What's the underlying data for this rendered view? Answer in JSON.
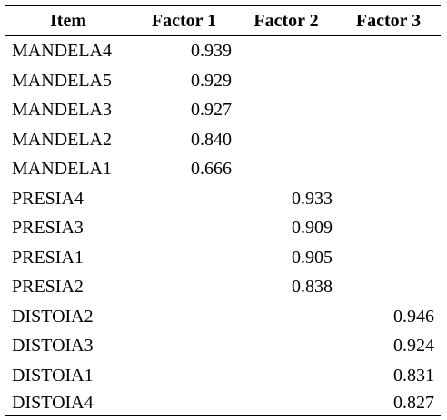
{
  "table": {
    "headers": [
      "Item",
      "Factor 1",
      "Factor 2",
      "Factor 3"
    ],
    "rows": [
      {
        "item": "MANDELA4",
        "f1": "0.939",
        "f2": "",
        "f3": ""
      },
      {
        "item": "MANDELA5",
        "f1": "0.929",
        "f2": "",
        "f3": ""
      },
      {
        "item": "MANDELA3",
        "f1": "0.927",
        "f2": "",
        "f3": ""
      },
      {
        "item": "MANDELA2",
        "f1": "0.840",
        "f2": "",
        "f3": ""
      },
      {
        "item": "MANDELA1",
        "f1": "0.666",
        "f2": "",
        "f3": ""
      },
      {
        "item": "PRESIA4",
        "f1": "",
        "f2": "0.933",
        "f3": ""
      },
      {
        "item": "PRESIA3",
        "f1": "",
        "f2": "0.909",
        "f3": ""
      },
      {
        "item": "PRESIA1",
        "f1": "",
        "f2": "0.905",
        "f3": ""
      },
      {
        "item": "PRESIA2",
        "f1": "",
        "f2": "0.838",
        "f3": ""
      },
      {
        "item": "DISTOIA2",
        "f1": "",
        "f2": "",
        "f3": "0.946"
      },
      {
        "item": "DISTOIA3",
        "f1": "",
        "f2": "",
        "f3": "0.924"
      },
      {
        "item": "DISTOIA1",
        "f1": "",
        "f2": "",
        "f3": "0.831"
      },
      {
        "item": "DISTOIA4",
        "f1": "",
        "f2": "",
        "f3": "0.827"
      }
    ]
  }
}
